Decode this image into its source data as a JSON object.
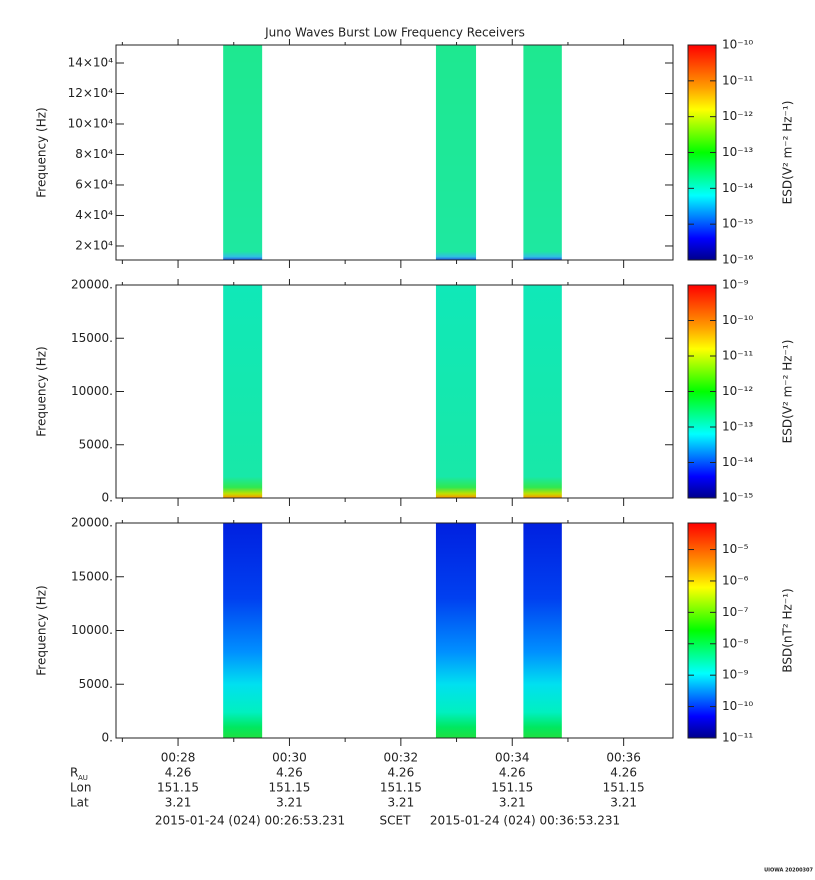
{
  "x_axis": {
    "xlim": [
      26.886,
      36.886
    ],
    "xticks": [
      {
        "value": 28,
        "label": "00:28"
      },
      {
        "value": 30,
        "label": "00:30"
      },
      {
        "value": 32,
        "label": "00:32"
      },
      {
        "value": 34,
        "label": "00:34"
      },
      {
        "value": 36,
        "label": "00:36"
      }
    ],
    "xminor": [
      27,
      29,
      31,
      33,
      35
    ]
  },
  "colormap": [
    "#00008c",
    "#0000ff",
    "#0080ff",
    "#00ffff",
    "#00ff80",
    "#00ff00",
    "#80ff00",
    "#ffff00",
    "#ffa000",
    "#ff5000",
    "#ff0000"
  ],
  "chart_data": [
    {
      "type": "spectrogram",
      "title": "Juno Waves Burst Low Frequency Receivers",
      "ylabel": "Frequency (Hz)",
      "ylim": [
        10800,
        151800
      ],
      "yticks": [
        {
          "value": 20000,
          "label": "2×10⁴"
        },
        {
          "value": 40000,
          "label": "4×10⁴"
        },
        {
          "value": 60000,
          "label": "6×10⁴"
        },
        {
          "value": 80000,
          "label": "8×10⁴"
        },
        {
          "value": 100000,
          "label": "10×10⁴"
        },
        {
          "value": 120000,
          "label": "12×10⁴"
        },
        {
          "value": 140000,
          "label": "14×10⁴"
        }
      ],
      "bursts": [
        [
          28.81,
          29.51
        ],
        [
          32.63,
          33.35
        ],
        [
          34.2,
          34.89
        ]
      ],
      "fill_stops": [
        [
          0,
          "#1ee890"
        ],
        [
          0.96,
          "#1ee8a0"
        ],
        [
          0.985,
          "#30c0e0"
        ],
        [
          1,
          "#2050e0"
        ]
      ],
      "colorbar": {
        "label": "ESD(V² m⁻² Hz⁻¹)",
        "log": true,
        "clim": [
          1e-16,
          1e-10
        ],
        "cticks": [
          {
            "value": 1e-16,
            "label": "10⁻¹⁶"
          },
          {
            "value": 1e-15,
            "label": "10⁻¹⁵"
          },
          {
            "value": 1e-14,
            "label": "10⁻¹⁴"
          },
          {
            "value": 1e-13,
            "label": "10⁻¹³"
          },
          {
            "value": 1e-12,
            "label": "10⁻¹²"
          },
          {
            "value": 1e-11,
            "label": "10⁻¹¹"
          },
          {
            "value": 1e-10,
            "label": "10⁻¹⁰"
          }
        ]
      }
    },
    {
      "type": "spectrogram",
      "ylabel": "Frequency (Hz)",
      "ylim": [
        0,
        20000
      ],
      "yticks": [
        {
          "value": 0,
          "label": "0."
        },
        {
          "value": 5000,
          "label": "5000."
        },
        {
          "value": 10000,
          "label": "10000."
        },
        {
          "value": 15000,
          "label": "15000."
        },
        {
          "value": 20000,
          "label": "20000."
        }
      ],
      "bursts": [
        [
          28.81,
          29.51
        ],
        [
          32.63,
          33.35
        ],
        [
          34.2,
          34.89
        ]
      ],
      "fill_stops": [
        [
          0,
          "#10e8b8"
        ],
        [
          0.9,
          "#18e8a8"
        ],
        [
          0.95,
          "#30e850"
        ],
        [
          0.98,
          "#c0e000"
        ],
        [
          1,
          "#ff9000"
        ]
      ],
      "colorbar": {
        "label": "ESD(V² m⁻² Hz⁻¹)",
        "log": true,
        "clim": [
          1e-15,
          1e-09
        ],
        "cticks": [
          {
            "value": 1e-15,
            "label": "10⁻¹⁵"
          },
          {
            "value": 1e-14,
            "label": "10⁻¹⁴"
          },
          {
            "value": 1e-13,
            "label": "10⁻¹³"
          },
          {
            "value": 1e-12,
            "label": "10⁻¹²"
          },
          {
            "value": 1e-11,
            "label": "10⁻¹¹"
          },
          {
            "value": 1e-10,
            "label": "10⁻¹⁰"
          },
          {
            "value": 1e-09,
            "label": "10⁻⁹"
          }
        ]
      }
    },
    {
      "type": "spectrogram",
      "ylabel": "Frequency (Hz)",
      "ylim": [
        0,
        20000
      ],
      "yticks": [
        {
          "value": 0,
          "label": "0."
        },
        {
          "value": 5000,
          "label": "5000."
        },
        {
          "value": 10000,
          "label": "10000."
        },
        {
          "value": 15000,
          "label": "15000."
        },
        {
          "value": 20000,
          "label": "20000."
        }
      ],
      "bursts": [
        [
          28.81,
          29.51
        ],
        [
          32.63,
          33.35
        ],
        [
          34.2,
          34.89
        ]
      ],
      "fill_stops": [
        [
          0,
          "#0020e0"
        ],
        [
          0.35,
          "#0040f0"
        ],
        [
          0.6,
          "#0090ff"
        ],
        [
          0.75,
          "#00e0f0"
        ],
        [
          0.88,
          "#00f0c0"
        ],
        [
          0.95,
          "#00e860"
        ],
        [
          1,
          "#20e040"
        ]
      ],
      "colorbar": {
        "label": "BSD(nT² Hz⁻¹)",
        "log": true,
        "clim": [
          1e-11,
          7e-05
        ],
        "cticks": [
          {
            "value": 1e-11,
            "label": "10⁻¹¹"
          },
          {
            "value": 1e-10,
            "label": "10⁻¹⁰"
          },
          {
            "value": 1e-09,
            "label": "10⁻⁹"
          },
          {
            "value": 1e-08,
            "label": "10⁻⁸"
          },
          {
            "value": 1e-07,
            "label": "10⁻⁷"
          },
          {
            "value": 1e-06,
            "label": "10⁻⁶"
          },
          {
            "value": 1e-05,
            "label": "10⁻⁵"
          }
        ]
      }
    }
  ],
  "ephemeris": {
    "labels": [
      "R",
      "Lon",
      "Lat"
    ],
    "r_subscript": "AU",
    "rows": [
      [
        "4.26",
        "4.26",
        "4.26",
        "4.26",
        "4.26"
      ],
      [
        "151.15",
        "151.15",
        "151.15",
        "151.15",
        "151.15"
      ],
      [
        "3.21",
        "3.21",
        "3.21",
        "3.21",
        "3.21"
      ]
    ]
  },
  "footer": {
    "start": "2015-01-24 (024) 00:26:53.231",
    "scet": "SCET",
    "end": "2015-01-24 (024) 00:36:53.231",
    "credit": "UIOWA 20200307"
  }
}
